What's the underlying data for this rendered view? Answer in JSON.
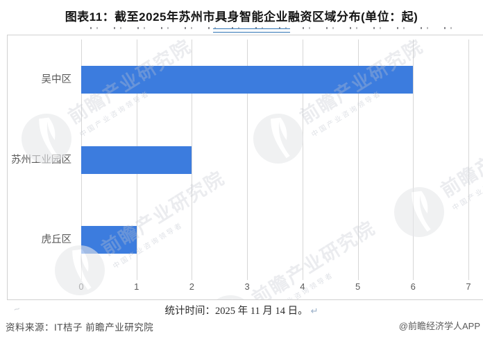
{
  "title": "图表11：截至2025年苏州市具身智能企业融资区域分布(单位：起)",
  "chart_data": {
    "type": "bar",
    "orientation": "horizontal",
    "title": "截至2025年苏州市具身智能企业融资区域分布",
    "unit_label": "单位：起",
    "categories": [
      "吴中区",
      "苏州工业园区",
      "虎丘区"
    ],
    "values": [
      6,
      2,
      1
    ],
    "xlim": [
      0,
      7
    ],
    "x_ticks": [
      "0",
      "1",
      "2",
      "3",
      "4",
      "5",
      "6",
      "7"
    ],
    "grid": "vertical gridlines",
    "legend": "none",
    "bar_color": "#3C7CDE"
  },
  "stat_line": {
    "text": "统计时间：2025 年 11 月 14 日。",
    "return_mark": "↵"
  },
  "footer": {
    "source": "资料来源：IT桔子 前瞻产业研究院",
    "credit": "@前瞻经济学人APP"
  },
  "watermark": {
    "text": "前瞻产业研究院",
    "subtext": "中国产业咨询领导者"
  },
  "colors": {
    "bar": "#3C7CDE",
    "grid": "#D6D6D6",
    "frame_border": "#D0D0D0",
    "link_underline": "#2E74B5",
    "label_text": "#595959"
  }
}
